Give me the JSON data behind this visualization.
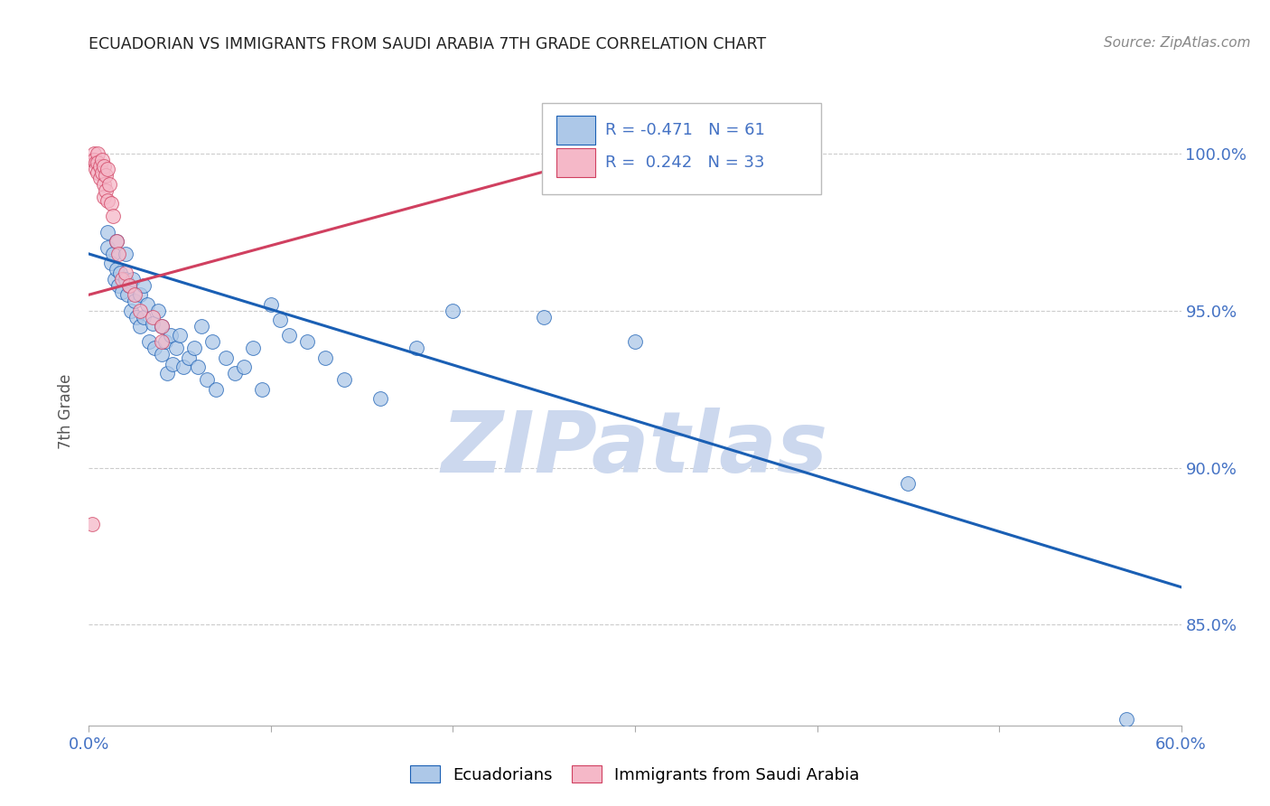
{
  "title": "ECUADORIAN VS IMMIGRANTS FROM SAUDI ARABIA 7TH GRADE CORRELATION CHART",
  "source": "Source: ZipAtlas.com",
  "ylabel": "7th Grade",
  "ylabel_ticks": [
    "85.0%",
    "90.0%",
    "95.0%",
    "100.0%"
  ],
  "y_tick_vals": [
    0.85,
    0.9,
    0.95,
    1.0
  ],
  "x_min": 0.0,
  "x_max": 0.6,
  "y_min": 0.818,
  "y_max": 1.018,
  "blue_color": "#adc8e8",
  "pink_color": "#f5b8c8",
  "blue_line_color": "#1a5fb4",
  "pink_line_color": "#d04060",
  "R_blue": -0.471,
  "N_blue": 61,
  "R_pink": 0.242,
  "N_pink": 33,
  "blue_x": [
    0.01,
    0.01,
    0.012,
    0.013,
    0.014,
    0.015,
    0.015,
    0.016,
    0.017,
    0.018,
    0.02,
    0.02,
    0.021,
    0.022,
    0.023,
    0.024,
    0.025,
    0.026,
    0.028,
    0.028,
    0.03,
    0.03,
    0.032,
    0.033,
    0.035,
    0.036,
    0.038,
    0.04,
    0.04,
    0.042,
    0.043,
    0.045,
    0.046,
    0.048,
    0.05,
    0.052,
    0.055,
    0.058,
    0.06,
    0.062,
    0.065,
    0.068,
    0.07,
    0.075,
    0.08,
    0.085,
    0.09,
    0.095,
    0.1,
    0.105,
    0.11,
    0.12,
    0.13,
    0.14,
    0.16,
    0.18,
    0.2,
    0.25,
    0.3,
    0.45,
    0.57
  ],
  "blue_y": [
    0.975,
    0.97,
    0.965,
    0.968,
    0.96,
    0.972,
    0.963,
    0.958,
    0.962,
    0.956,
    0.968,
    0.96,
    0.955,
    0.958,
    0.95,
    0.96,
    0.953,
    0.948,
    0.955,
    0.945,
    0.958,
    0.948,
    0.952,
    0.94,
    0.946,
    0.938,
    0.95,
    0.945,
    0.936,
    0.94,
    0.93,
    0.942,
    0.933,
    0.938,
    0.942,
    0.932,
    0.935,
    0.938,
    0.932,
    0.945,
    0.928,
    0.94,
    0.925,
    0.935,
    0.93,
    0.932,
    0.938,
    0.925,
    0.952,
    0.947,
    0.942,
    0.94,
    0.935,
    0.928,
    0.922,
    0.938,
    0.95,
    0.948,
    0.94,
    0.895,
    0.82
  ],
  "pink_x": [
    0.002,
    0.003,
    0.003,
    0.004,
    0.004,
    0.005,
    0.005,
    0.005,
    0.006,
    0.006,
    0.007,
    0.007,
    0.008,
    0.008,
    0.008,
    0.009,
    0.009,
    0.01,
    0.01,
    0.011,
    0.012,
    0.013,
    0.015,
    0.016,
    0.018,
    0.02,
    0.022,
    0.025,
    0.028,
    0.035,
    0.04,
    0.04,
    0.002
  ],
  "pink_y": [
    0.998,
    1.0,
    0.998,
    0.997,
    0.995,
    1.0,
    0.997,
    0.994,
    0.996,
    0.992,
    0.998,
    0.994,
    0.996,
    0.99,
    0.986,
    0.993,
    0.988,
    0.995,
    0.985,
    0.99,
    0.984,
    0.98,
    0.972,
    0.968,
    0.96,
    0.962,
    0.958,
    0.955,
    0.95,
    0.948,
    0.945,
    0.94,
    0.882
  ],
  "blue_trend_x": [
    0.0,
    0.6
  ],
  "blue_trend_y": [
    0.968,
    0.862
  ],
  "pink_trend_x": [
    0.0,
    0.3
  ],
  "pink_trend_y": [
    0.955,
    1.002
  ],
  "watermark": "ZIPatlas",
  "watermark_color": "#ccd8ee",
  "grid_color": "#cccccc",
  "axis_label_color": "#4472c4",
  "title_color": "#222222"
}
